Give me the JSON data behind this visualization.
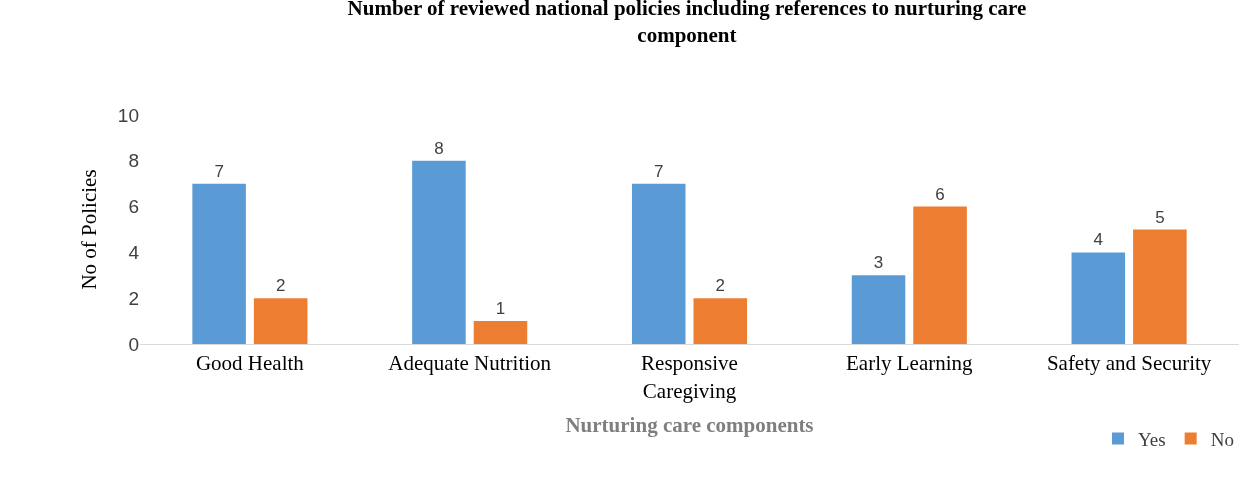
{
  "chart_data": {
    "type": "bar",
    "title": "Number of reviewed national policies including references to nurturing care component",
    "xlabel": "Nurturing care components",
    "ylabel": "No of Policies",
    "categories": [
      "Good Health",
      "Adequate Nutrition",
      "Responsive Caregiving",
      "Early Learning",
      "Safety and Security"
    ],
    "series": [
      {
        "name": "Yes",
        "color": "#5b9bd5",
        "values": [
          7,
          8,
          7,
          3,
          4
        ]
      },
      {
        "name": "No",
        "color": "#ed7d31",
        "values": [
          2,
          1,
          2,
          6,
          5
        ]
      }
    ],
    "ylim": [
      0,
      10
    ],
    "yticks": [
      0,
      2,
      4,
      6,
      8,
      10
    ],
    "grid": false,
    "legend": "bottom right",
    "data_labels": true
  }
}
